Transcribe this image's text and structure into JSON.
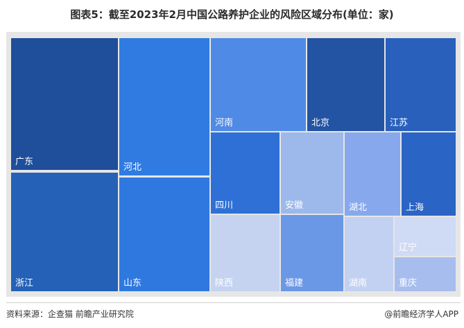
{
  "chart_data": {
    "type": "treemap",
    "title": "图表5：截至2023年2月中国公路养护企业的风险区域分布(单位：家)",
    "cells": [
      {
        "name": "广东",
        "color": "#1f4e9a"
      },
      {
        "name": "浙江",
        "color": "#2561b6"
      },
      {
        "name": "河北",
        "color": "#2f7be2"
      },
      {
        "name": "山东",
        "color": "#2f78e0"
      },
      {
        "name": "河南",
        "color": "#4f8ae6"
      },
      {
        "name": "北京",
        "color": "#2353a3"
      },
      {
        "name": "江苏",
        "color": "#2860bc"
      },
      {
        "name": "四川",
        "color": "#2e70d6"
      },
      {
        "name": "安徽",
        "color": "#9db8ea"
      },
      {
        "name": "陕西",
        "color": "#c5d3f1"
      },
      {
        "name": "福建",
        "color": "#6b98e6"
      },
      {
        "name": "湖北",
        "color": "#87a8ec"
      },
      {
        "name": "上海",
        "color": "#2a64c4"
      },
      {
        "name": "湖南",
        "color": "#c2d1f2"
      },
      {
        "name": "辽宁",
        "color": "#cfdaf4"
      },
      {
        "name": "重庆",
        "color": "#a7bdee"
      }
    ]
  },
  "footer": {
    "source": "资料来源：企查猫 前瞻产业研究院",
    "brand": "@前瞻经济学人APP"
  }
}
